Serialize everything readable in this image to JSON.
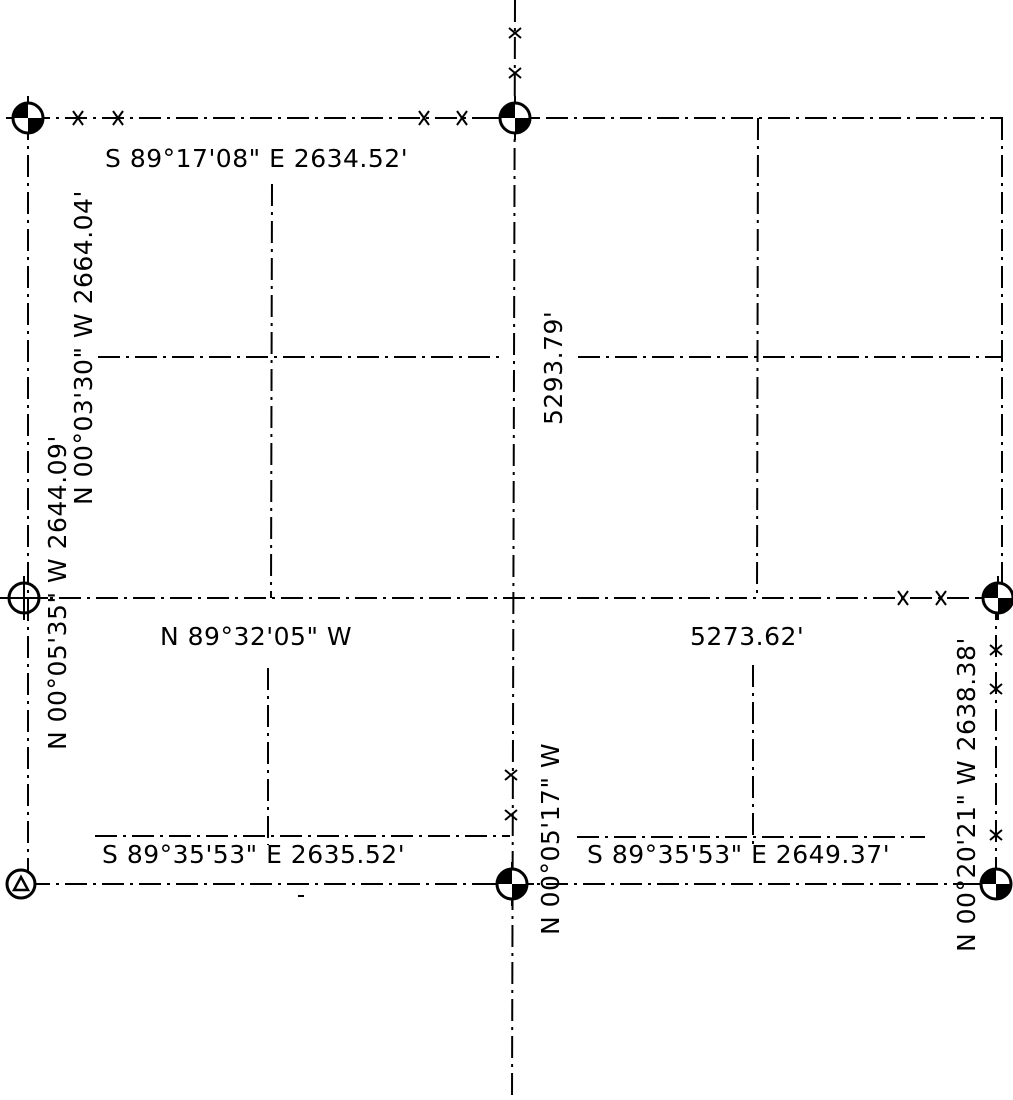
{
  "labels": {
    "north_boundary": "S 89°17'08\" E 2634.52'",
    "west_upper": "N 00°03'30\" W 2664.04'",
    "center_vertical_upper": "5293.79'",
    "mid_horizontal_west": "N 89°32'05\" W",
    "mid_horizontal_east": "5273.62'",
    "west_lower": "N 00°05'35\" W 2644.09'",
    "center_vertical_lower": "N 00°05'17\" W",
    "east_lower": "N 00°20'21\" W 2638.38'",
    "south_west": "S 89°35'53\" E 2635.52'",
    "south_east": "S 89°35'53\" E 2649.37'"
  },
  "monuments": {
    "quartered": "quartered-circle-monument-icon",
    "open_cross": "open-cross-circle-monument-icon",
    "triangle": "triangle-in-circle-monument-icon"
  }
}
